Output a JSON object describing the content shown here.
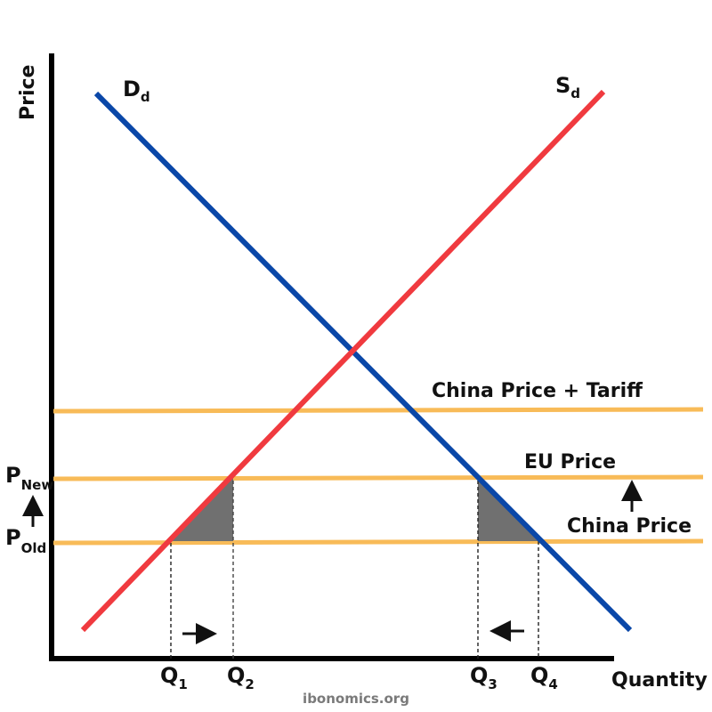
{
  "axes": {
    "y_label": "Price",
    "x_label": "Quantity"
  },
  "curves": {
    "demand": {
      "letter": "D",
      "subscript": "d",
      "color": "#0a47a8"
    },
    "supply": {
      "letter": "S",
      "subscript": "d",
      "color": "#f03a3f"
    }
  },
  "price_lines": {
    "color": "#f8bb58",
    "tariff": "China Price + Tariff",
    "eu": "EU Price",
    "china": "China Price"
  },
  "price_labels": {
    "new": {
      "letter": "P",
      "subscript": "New"
    },
    "old": {
      "letter": "P",
      "subscript": "Old"
    }
  },
  "quantity_labels": [
    {
      "letter": "Q",
      "subscript": "1"
    },
    {
      "letter": "Q",
      "subscript": "2"
    },
    {
      "letter": "Q",
      "subscript": "3"
    },
    {
      "letter": "Q",
      "subscript": "4"
    }
  ],
  "shade_color": "#707070",
  "watermark": "ibonomics.org"
}
